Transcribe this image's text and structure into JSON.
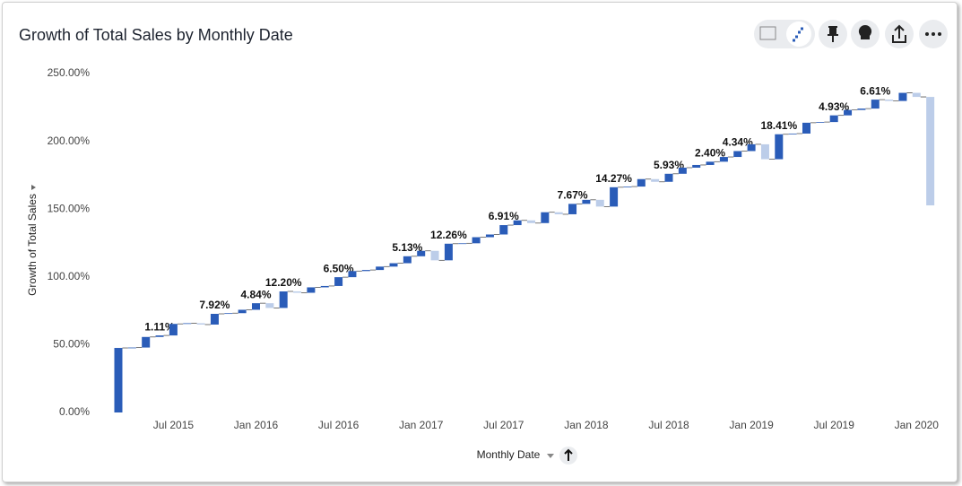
{
  "chart_data": {
    "type": "waterfall",
    "title": "Growth of Total Sales by Monthly Date",
    "x_label": "Monthly Date",
    "y_label": "Growth of Total Sales",
    "categories": [
      null,
      null,
      null,
      null,
      "Jul 2015",
      null,
      null,
      null,
      null,
      null,
      "Jan 2016",
      null,
      null,
      null,
      null,
      null,
      "Jul 2016",
      null,
      null,
      null,
      null,
      null,
      "Jan 2017",
      null,
      null,
      null,
      null,
      null,
      "Jul 2017",
      null,
      null,
      null,
      null,
      null,
      "Jan 2018",
      null,
      null,
      null,
      null,
      null,
      "Jul 2018",
      null,
      null,
      null,
      null,
      null,
      "Jan 2019",
      null,
      null,
      null,
      null,
      null,
      "Jul 2019",
      null,
      null,
      null,
      null,
      null,
      "Jan 2020",
      null
    ],
    "values": [
      47.6,
      0.3,
      7.8,
      1.11,
      8.52,
      0.5,
      -1,
      7.92,
      0.5,
      2.5,
      4.84,
      -3.5,
      12.2,
      -1,
      4,
      1,
      6.5,
      4.5,
      0.8,
      2.5,
      2.5,
      5.13,
      4,
      -7,
      12.26,
      0.3,
      4.5,
      2,
      6.91,
      3.5,
      -2,
      8,
      -1.5,
      7.67,
      3,
      -5,
      14.27,
      0.5,
      5.5,
      -2,
      5.93,
      4.5,
      2,
      2.4,
      3.5,
      4.34,
      5,
      -11,
      18.41,
      0.5,
      8,
      0.5,
      4.93,
      4,
      1,
      6.61,
      -1,
      6,
      -3,
      -80
    ],
    "value_labels": [
      null,
      null,
      null,
      "1.11%",
      null,
      null,
      null,
      "7.92%",
      null,
      null,
      "4.84%",
      null,
      "12.20%",
      null,
      null,
      null,
      "6.50%",
      null,
      null,
      null,
      null,
      "5.13%",
      null,
      null,
      "12.26%",
      null,
      null,
      null,
      "6.91%",
      null,
      null,
      null,
      null,
      "7.67%",
      null,
      null,
      "14.27%",
      null,
      null,
      null,
      "5.93%",
      null,
      null,
      "2.40%",
      null,
      "4.34%",
      null,
      null,
      "18.41%",
      null,
      null,
      null,
      "4.93%",
      null,
      null,
      "6.61%",
      null,
      null,
      null,
      null
    ],
    "color_increase": "#2a5cb8",
    "color_decrease": "#bccde9",
    "ylim": [
      0,
      250
    ],
    "yticks": [
      {
        "value": 0,
        "label": "0.00%"
      },
      {
        "value": 50,
        "label": "50.00%"
      },
      {
        "value": 100,
        "label": "100.00%"
      },
      {
        "value": 150,
        "label": "150.00%"
      },
      {
        "value": 200,
        "label": "200.00%"
      },
      {
        "value": 250,
        "label": "250.00%"
      }
    ]
  }
}
